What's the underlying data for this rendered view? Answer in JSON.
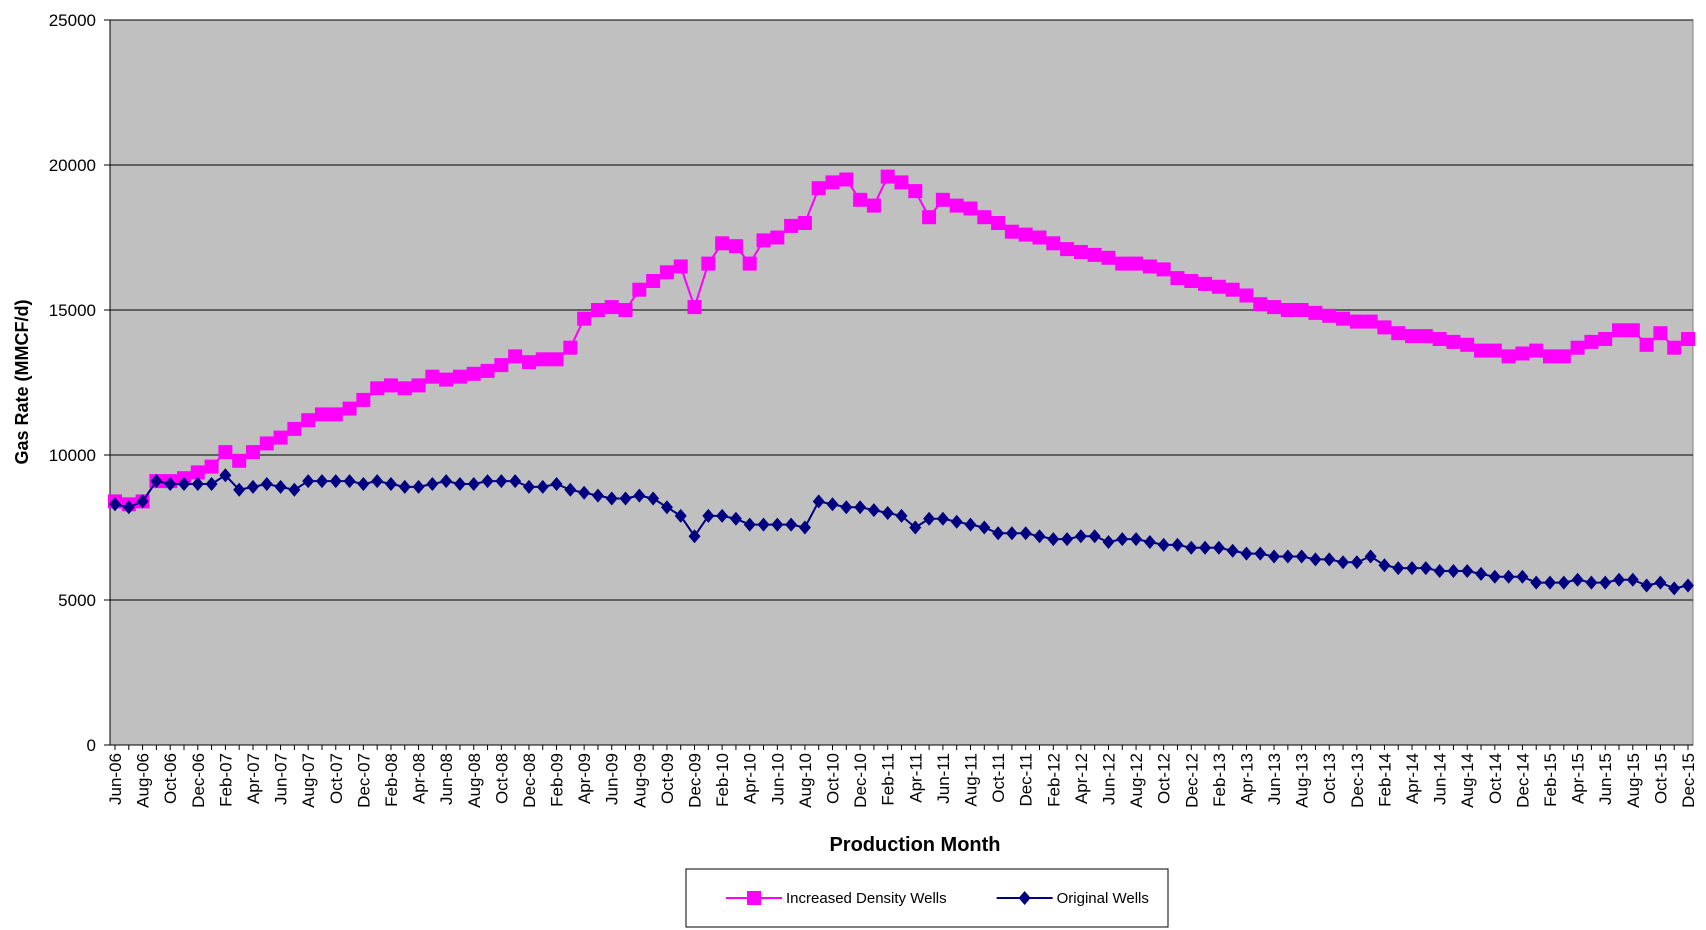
{
  "chart_data": {
    "type": "line",
    "y_label": "Gas Rate (MMCF/d)",
    "x_label": "Production Month",
    "categories": [
      "Jun-06",
      null,
      "Aug-06",
      null,
      "Oct-06",
      null,
      "Dec-06",
      null,
      "Feb-07",
      null,
      "Apr-07",
      null,
      "Jun-07",
      null,
      "Aug-07",
      null,
      "Oct-07",
      null,
      "Dec-07",
      null,
      "Feb-08",
      null,
      "Apr-08",
      null,
      "Jun-08",
      null,
      "Aug-08",
      null,
      "Oct-08",
      null,
      "Dec-08",
      null,
      "Feb-09",
      null,
      "Apr-09",
      null,
      "Jun-09",
      null,
      "Aug-09",
      null,
      "Oct-09",
      null,
      "Dec-09",
      null,
      "Feb-10",
      null,
      "Apr-10",
      null,
      "Jun-10",
      null,
      "Aug-10",
      null,
      "Oct-10",
      null,
      "Dec-10",
      null,
      "Feb-11",
      null,
      "Apr-11",
      null,
      "Jun-11",
      null,
      "Aug-11",
      null,
      "Oct-11",
      null,
      "Dec-11",
      null,
      "Feb-12",
      null,
      "Apr-12",
      null,
      "Jun-12",
      null,
      "Aug-12",
      null,
      "Oct-12",
      null,
      "Dec-12",
      null,
      "Feb-13",
      null,
      "Apr-13",
      null,
      "Jun-13",
      null,
      "Aug-13",
      null,
      "Oct-13",
      null,
      "Dec-13",
      null,
      "Feb-14",
      null,
      "Apr-14",
      null,
      "Jun-14",
      null,
      "Aug-14",
      null,
      "Oct-14",
      null,
      "Dec-14",
      null,
      "Feb-15",
      null,
      "Apr-15",
      null,
      "Jun-15",
      null,
      "Aug-15",
      null,
      "Oct-15",
      null,
      "Dec-15"
    ],
    "series": [
      {
        "name": "Increased Density Wells",
        "color": "#ff00ff",
        "marker": "square",
        "values": [
          8400,
          8300,
          8400,
          9100,
          9100,
          9200,
          9400,
          9600,
          10100,
          9800,
          10100,
          10400,
          10600,
          10900,
          11200,
          11400,
          11400,
          11600,
          11900,
          12300,
          12400,
          12300,
          12400,
          12700,
          12600,
          12700,
          12800,
          12900,
          13100,
          13400,
          13200,
          13300,
          13300,
          13700,
          14700,
          15000,
          15100,
          15000,
          15700,
          16000,
          16300,
          16500,
          15100,
          16600,
          17300,
          17200,
          16600,
          17400,
          17500,
          17900,
          18000,
          19200,
          19400,
          19500,
          18800,
          18600,
          19600,
          19400,
          19100,
          18200,
          18800,
          18600,
          18500,
          18200,
          18000,
          17700,
          17600,
          17500,
          17300,
          17100,
          17000,
          16900,
          16800,
          16600,
          16600,
          16500,
          16400,
          16100,
          16000,
          15900,
          15800,
          15700,
          15500,
          15200,
          15100,
          15000,
          15000,
          14900,
          14800,
          14700,
          14600,
          14600,
          14400,
          14200,
          14100,
          14100,
          14000,
          13900,
          13800,
          13600,
          13600,
          13400,
          13500,
          13600,
          13400,
          13400,
          13700,
          13900,
          14000,
          14300,
          14300,
          13800,
          14200,
          13700,
          14000
        ]
      },
      {
        "name": "Original Wells",
        "color": "#000080",
        "marker": "diamond",
        "values": [
          8300,
          8200,
          8400,
          9100,
          9000,
          9000,
          9000,
          9000,
          9300,
          8800,
          8900,
          9000,
          8900,
          8800,
          9100,
          9100,
          9100,
          9100,
          9000,
          9100,
          9000,
          8900,
          8900,
          9000,
          9100,
          9000,
          9000,
          9100,
          9100,
          9100,
          8900,
          8900,
          9000,
          8800,
          8700,
          8600,
          8500,
          8500,
          8600,
          8500,
          8200,
          7900,
          7200,
          7900,
          7900,
          7800,
          7600,
          7600,
          7600,
          7600,
          7500,
          8400,
          8300,
          8200,
          8200,
          8100,
          8000,
          7900,
          7500,
          7800,
          7800,
          7700,
          7600,
          7500,
          7300,
          7300,
          7300,
          7200,
          7100,
          7100,
          7200,
          7200,
          7000,
          7100,
          7100,
          7000,
          6900,
          6900,
          6800,
          6800,
          6800,
          6700,
          6600,
          6600,
          6500,
          6500,
          6500,
          6400,
          6400,
          6300,
          6300,
          6500,
          6200,
          6100,
          6100,
          6100,
          6000,
          6000,
          6000,
          5900,
          5800,
          5800,
          5800,
          5600,
          5600,
          5600,
          5700,
          5600,
          5600,
          5700,
          5700,
          5500,
          5600,
          5400,
          5500
        ]
      }
    ],
    "ylim": [
      0,
      25000
    ],
    "yticks": [
      0,
      5000,
      10000,
      15000,
      20000,
      25000
    ],
    "grid": true,
    "plot_background": "#c0c0c0",
    "legend": "bottom"
  }
}
